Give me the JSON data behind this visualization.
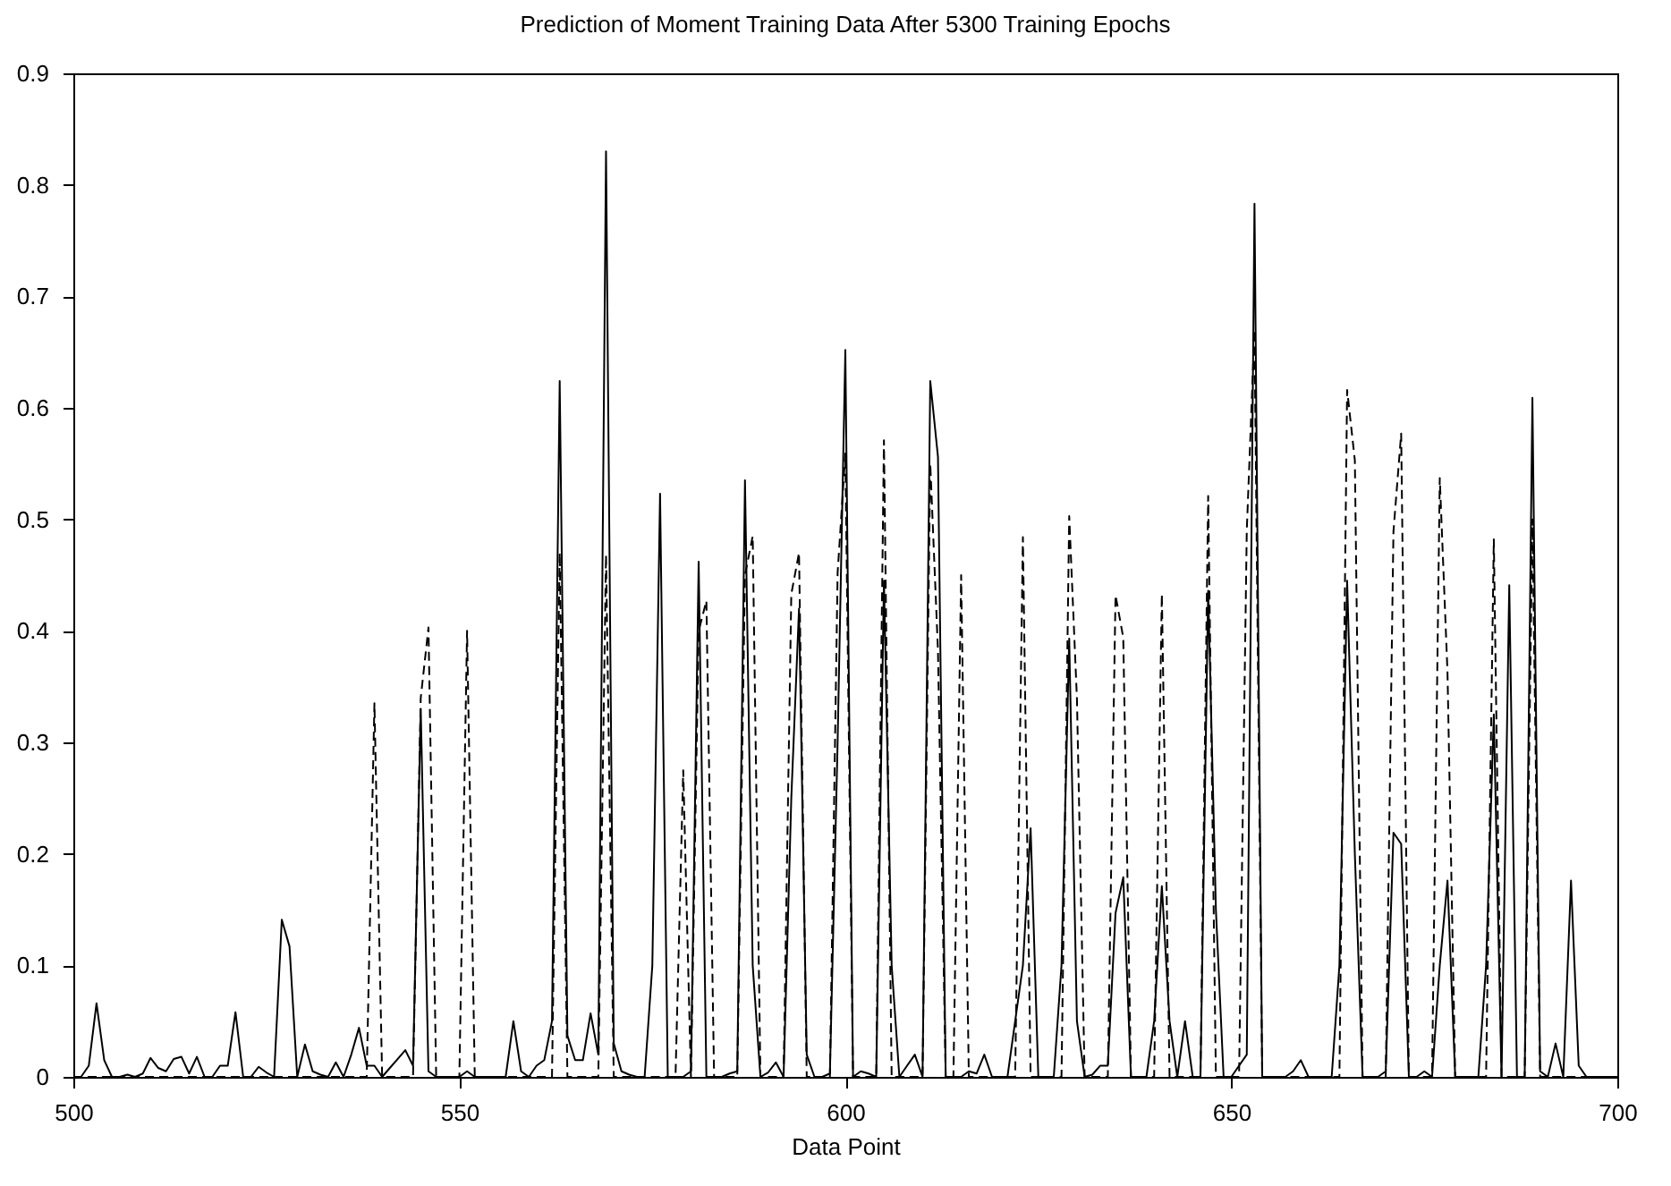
{
  "chart_data": {
    "type": "line",
    "title": "Prediction of Moment Training Data After 5300 Training Epochs",
    "xlabel": "Data Point",
    "x": [
      500,
      501,
      502,
      503,
      504,
      505,
      506,
      507,
      508,
      509,
      510,
      511,
      512,
      513,
      514,
      515,
      516,
      517,
      518,
      519,
      520,
      521,
      522,
      523,
      524,
      525,
      526,
      527,
      528,
      529,
      530,
      531,
      532,
      533,
      534,
      535,
      536,
      537,
      538,
      539,
      540,
      541,
      542,
      543,
      544,
      545,
      546,
      547,
      548,
      549,
      550,
      551,
      552,
      553,
      554,
      555,
      556,
      557,
      558,
      559,
      560,
      561,
      562,
      563,
      564,
      565,
      566,
      567,
      568,
      569,
      570,
      571,
      572,
      573,
      574,
      575,
      576,
      577,
      578,
      579,
      580,
      581,
      582,
      583,
      584,
      585,
      586,
      587,
      588,
      589,
      590,
      591,
      592,
      593,
      594,
      595,
      596,
      597,
      598,
      599,
      600,
      601,
      602,
      603,
      604,
      605,
      606,
      607,
      608,
      609,
      610,
      611,
      612,
      613,
      614,
      615,
      616,
      617,
      618,
      619,
      620,
      621,
      622,
      623,
      624,
      625,
      626,
      627,
      628,
      629,
      630,
      631,
      632,
      633,
      634,
      635,
      636,
      637,
      638,
      639,
      640,
      641,
      642,
      643,
      644,
      645,
      646,
      647,
      648,
      649,
      650,
      651,
      652,
      653,
      654,
      655,
      656,
      657,
      658,
      659,
      660,
      661,
      662,
      663,
      664,
      665,
      666,
      667,
      668,
      669,
      670,
      671,
      672,
      673,
      674,
      675,
      676,
      677,
      678,
      679,
      680,
      681,
      682,
      683,
      684,
      685,
      686,
      687,
      688,
      689,
      690,
      691,
      692,
      693,
      694,
      695,
      696,
      697,
      698,
      699,
      700
    ],
    "series": [
      {
        "color": "#000000",
        "line_style": "solid",
        "values": [
          0,
          0,
          0.01,
          0.066,
          0.015,
          0,
          0,
          0.002,
          0,
          0.003,
          0.017,
          0.008,
          0.005,
          0.016,
          0.018,
          0.003,
          0.018,
          0,
          0,
          0.01,
          0.01,
          0.058,
          0,
          0,
          0.009,
          0.004,
          0,
          0.141,
          0.117,
          0,
          0.029,
          0.005,
          0.002,
          0,
          0.013,
          0,
          0.02,
          0.044,
          0.01,
          0.01,
          0,
          0.008,
          0.016,
          0.024,
          0.01,
          0.33,
          0.005,
          0,
          0,
          0,
          0,
          0.005,
          0,
          0,
          0,
          0,
          0,
          0.05,
          0.005,
          0,
          0.01,
          0.015,
          0.05,
          0.624,
          0.037,
          0.015,
          0.015,
          0.057,
          0.02,
          0.83,
          0.03,
          0.005,
          0.002,
          0,
          0,
          0.1,
          0.523,
          0,
          0,
          0,
          0.005,
          0.462,
          0,
          0,
          0,
          0.003,
          0.005,
          0.535,
          0.1,
          0,
          0.004,
          0.013,
          0,
          0.25,
          0.42,
          0.02,
          0,
          0,
          0.003,
          0.3,
          0.652,
          0,
          0.005,
          0.003,
          0,
          0.445,
          0.1,
          0,
          0.01,
          0.02,
          0,
          0.624,
          0.556,
          0,
          0,
          0,
          0.005,
          0.003,
          0.02,
          0,
          0,
          0,
          0.05,
          0.1,
          0.223,
          0,
          0,
          0,
          0.1,
          0.393,
          0.05,
          0,
          0.002,
          0.01,
          0.01,
          0.147,
          0.179,
          0,
          0,
          0,
          0.05,
          0.171,
          0.05,
          0,
          0.05,
          0,
          0,
          0.436,
          0.15,
          0,
          0,
          0.01,
          0.02,
          0.783,
          0,
          0,
          0,
          0,
          0.005,
          0.015,
          0,
          0,
          0,
          0,
          0.1,
          0.445,
          0.2,
          0,
          0,
          0,
          0.005,
          0.219,
          0.209,
          0,
          0,
          0.005,
          0,
          0.1,
          0.176,
          0,
          0,
          0,
          0,
          0.1,
          0.325,
          0,
          0.441,
          0,
          0,
          0.609,
          0.005,
          0,
          0.03,
          0,
          0.176,
          0.01,
          0,
          0,
          0,
          0,
          0
        ]
      },
      {
        "color": "#000000",
        "line_style": "dashed",
        "values": [
          0,
          0,
          0,
          0,
          0,
          0,
          0,
          0,
          0,
          0,
          0,
          0,
          0,
          0,
          0,
          0,
          0,
          0,
          0,
          0,
          0,
          0,
          0,
          0,
          0,
          0,
          0,
          0,
          0,
          0,
          0,
          0,
          0,
          0,
          0,
          0,
          0,
          0,
          0,
          0.335,
          0,
          0,
          0,
          0,
          0,
          0.34,
          0.403,
          0,
          0,
          0,
          0,
          0.4,
          0,
          0,
          0,
          0,
          0,
          0,
          0,
          0,
          0,
          0,
          0,
          0.47,
          0,
          0,
          0,
          0,
          0,
          0.468,
          0,
          0,
          0,
          0,
          0,
          0,
          0,
          0,
          0,
          0.275,
          0,
          0.4,
          0.427,
          0,
          0,
          0,
          0,
          0.45,
          0.485,
          0,
          0,
          0,
          0,
          0.433,
          0.47,
          0,
          0,
          0,
          0,
          0.452,
          0.559,
          0,
          0,
          0,
          0,
          0.571,
          0,
          0,
          0,
          0,
          0,
          0.55,
          0.382,
          0,
          0,
          0.45,
          0,
          0,
          0,
          0,
          0,
          0,
          0,
          0.484,
          0,
          0,
          0,
          0,
          0,
          0.503,
          0.339,
          0,
          0,
          0,
          0,
          0.432,
          0.394,
          0,
          0,
          0,
          0,
          0.433,
          0,
          0,
          0,
          0,
          0,
          0.521,
          0,
          0,
          0,
          0,
          0.49,
          0.67,
          0,
          0,
          0,
          0,
          0,
          0,
          0,
          0,
          0,
          0,
          0,
          0.616,
          0.553,
          0,
          0,
          0,
          0,
          0.489,
          0.577,
          0,
          0,
          0,
          0,
          0.537,
          0.363,
          0,
          0,
          0,
          0,
          0,
          0.482,
          0,
          0,
          0,
          0,
          0.5,
          0,
          0,
          0,
          0,
          0,
          0,
          0,
          0,
          0,
          0,
          0
        ]
      }
    ],
    "xlim": [
      500,
      700
    ],
    "xticks": [
      500,
      550,
      600,
      650,
      700
    ],
    "ylim": [
      0,
      0.9
    ],
    "yticks": [
      0,
      0.1,
      0.2,
      0.3,
      0.4,
      0.5,
      0.6,
      0.7,
      0.8,
      0.9
    ],
    "grid": false
  }
}
